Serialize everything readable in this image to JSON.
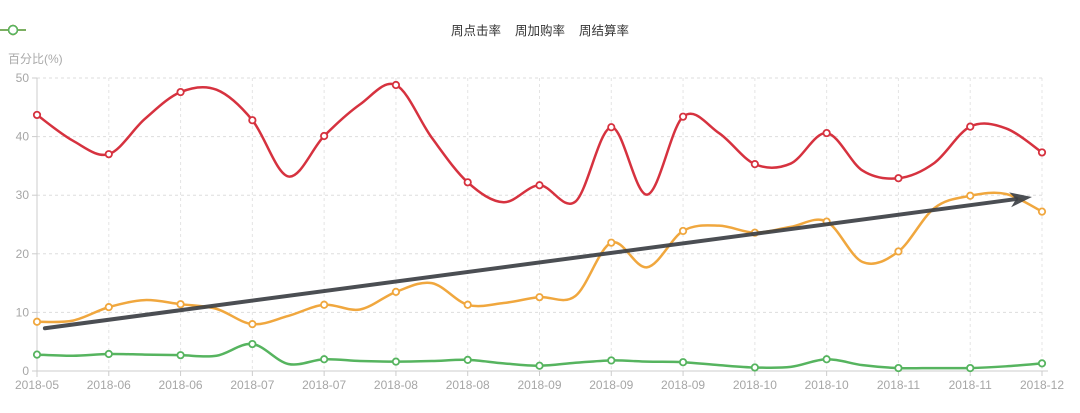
{
  "page": {
    "background": "#ffffff"
  },
  "legend": {
    "items": [
      {
        "label": "周点击率",
        "color": "#d6323f"
      },
      {
        "label": "周加购率",
        "color": "#f0a73e"
      },
      {
        "label": "周结算率",
        "color": "#56b45f"
      }
    ]
  },
  "chart_data": {
    "type": "line",
    "title": "",
    "ylabel": "百分比(%)",
    "xlabel": "",
    "ylim": [
      0,
      50
    ],
    "yticks": [
      0,
      10,
      20,
      30,
      40,
      50
    ],
    "grid": true,
    "legend_position": "top-center",
    "smooth": true,
    "categories": [
      "2018-05",
      "2018-06",
      "2018-06",
      "2018-07",
      "2018-07",
      "2018-08",
      "2018-08",
      "2018-09",
      "2018-09",
      "2018-09",
      "2018-10",
      "2018-10",
      "2018-11",
      "2018-11",
      "2018-12"
    ],
    "points_per_tick_interval": 2,
    "series": [
      {
        "name": "周点击率",
        "color": "#d6323f",
        "marker": "circle",
        "values": [
          43.7,
          39.3,
          37.0,
          43.0,
          47.6,
          48.0,
          42.8,
          33.2,
          40.1,
          45.5,
          48.8,
          39.8,
          32.2,
          28.8,
          31.7,
          28.9,
          41.6,
          30.1,
          43.4,
          40.6,
          35.3,
          35.4,
          40.6,
          34.2,
          32.9,
          35.5,
          41.7,
          41.4,
          37.3
        ]
      },
      {
        "name": "周加购率",
        "color": "#f0a73e",
        "marker": "circle",
        "values": [
          8.4,
          8.6,
          10.9,
          12.1,
          11.4,
          10.6,
          8.0,
          9.4,
          11.3,
          10.5,
          13.5,
          15.0,
          11.3,
          11.6,
          12.6,
          12.8,
          21.9,
          17.7,
          23.9,
          24.8,
          23.6,
          24.6,
          25.5,
          18.6,
          20.4,
          27.8,
          29.9,
          30.2,
          27.2
        ]
      },
      {
        "name": "周结算率",
        "color": "#56b45f",
        "marker": "circle",
        "values": [
          2.8,
          2.6,
          2.9,
          2.8,
          2.7,
          2.6,
          4.6,
          1.2,
          2.0,
          1.7,
          1.6,
          1.7,
          1.9,
          1.3,
          0.9,
          1.4,
          1.8,
          1.6,
          1.5,
          1.0,
          0.6,
          0.7,
          2.0,
          1.0,
          0.5,
          0.5,
          0.5,
          0.8,
          1.3
        ]
      }
    ],
    "annotation_arrow": {
      "from": {
        "x_ticks": 0.11,
        "value": 7.3
      },
      "to": {
        "x_ticks": 13.86,
        "value": 29.7
      },
      "color": "#3c4045"
    }
  },
  "style": {
    "axis_line_color": "#cccccc",
    "grid_line_color": "#dddddd",
    "vgrid_line_color": "#e4e4e4",
    "tick_label_color": "#a6a6a6",
    "legend_text_color": "#333333",
    "axis_name_color": "#a9a9a9"
  }
}
